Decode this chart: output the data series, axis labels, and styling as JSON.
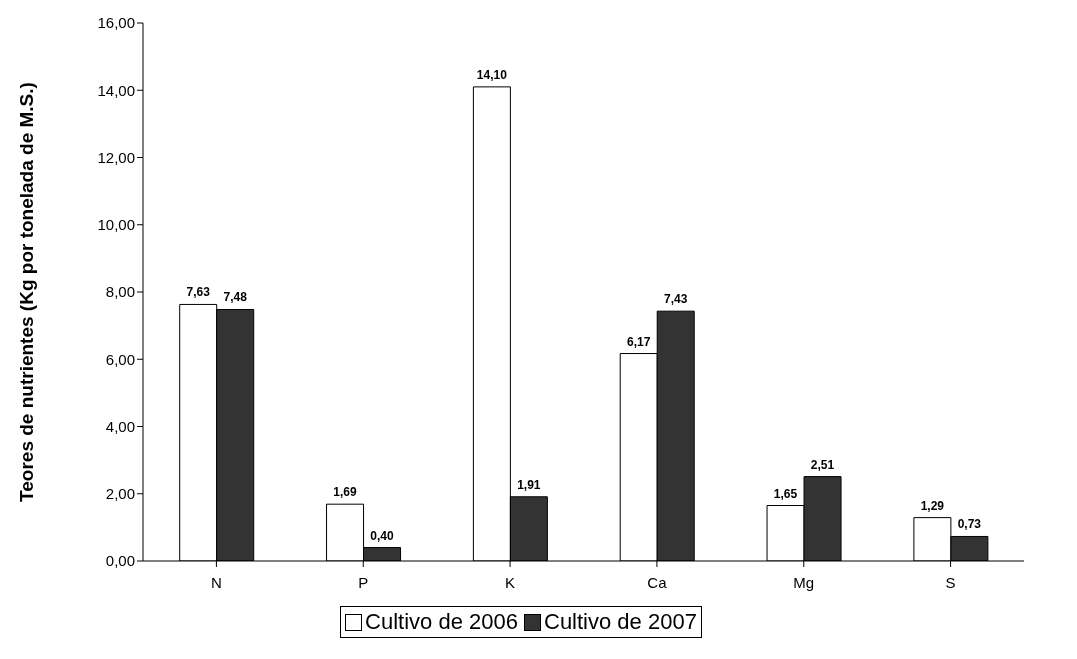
{
  "chart_data": {
    "type": "bar",
    "ylabel": "Teores de nutrientes (Kg por tonelada de M.S.)",
    "categories": [
      "N",
      "P",
      "K",
      "Ca",
      "Mg",
      "S"
    ],
    "series": [
      {
        "name": "Cultivo de 2006",
        "color": "#ffffff",
        "values": [
          7.63,
          1.69,
          14.1,
          6.17,
          1.65,
          1.29
        ],
        "value_labels": [
          "7,63",
          "1,69",
          "14,10",
          "6,17",
          "1,65",
          "1,29"
        ]
      },
      {
        "name": "Cultivo de 2007",
        "color": "#333333",
        "values": [
          7.48,
          0.4,
          1.91,
          7.43,
          2.51,
          0.73
        ],
        "value_labels": [
          "7,48",
          "0,40",
          "1,91",
          "7,43",
          "2,51",
          "0,73"
        ]
      }
    ],
    "ylim": [
      0,
      16
    ],
    "yticks": [
      {
        "value": 0,
        "label": "0,00"
      },
      {
        "value": 2,
        "label": "2,00"
      },
      {
        "value": 4,
        "label": "4,00"
      },
      {
        "value": 6,
        "label": "6,00"
      },
      {
        "value": 8,
        "label": "8,00"
      },
      {
        "value": 10,
        "label": "10,00"
      },
      {
        "value": 12,
        "label": "12,00"
      },
      {
        "value": 14,
        "label": "14,00"
      },
      {
        "value": 16,
        "label": "16,00"
      }
    ],
    "grid": false,
    "legend": "bottom"
  }
}
